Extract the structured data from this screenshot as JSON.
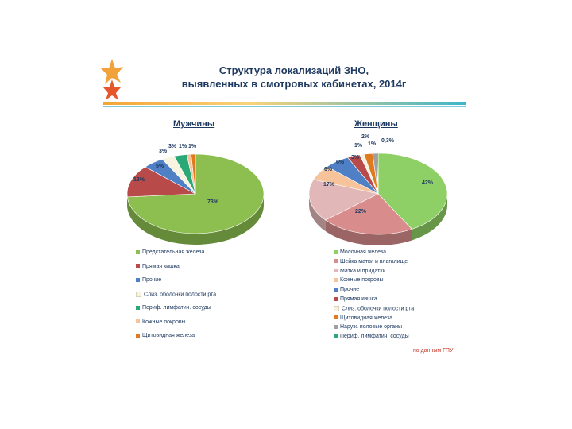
{
  "title": {
    "line1": "Структура локализаций ЗНО,",
    "line2": "выявленных в смотровых кабинетах, 2014г"
  },
  "note": "по данным ГПУ",
  "colors": {
    "green": "#8cbf4f",
    "red": "#b84a4a",
    "blue": "#4f7fc4",
    "cream": "#f7f3e0",
    "teal": "#2aa876",
    "peach": "#f6c39a",
    "orange": "#e07a1f",
    "lightgreen": "#8fd066",
    "rose": "#d98c8c",
    "pink": "#e2b7b7",
    "grey": "#a0a0a0"
  },
  "chart_data": [
    {
      "type": "pie",
      "title": "Мужчины",
      "slices": [
        {
          "label": "Предстательная железа",
          "value": 73,
          "value_label": "73%",
          "color": "#8cbf4f"
        },
        {
          "label": "Прямая кишка",
          "value": 13,
          "value_label": "13%",
          "color": "#b84a4a"
        },
        {
          "label": "Прочие",
          "value": 5,
          "value_label": "5%",
          "color": "#4f7fc4"
        },
        {
          "label": "Слиз. оболочки полости рта",
          "value": 3,
          "value_label": "3%",
          "color": "#f7f3e0"
        },
        {
          "label": "Периф. лимфатич. сосуды",
          "value": 3,
          "value_label": "3%",
          "color": "#2aa876"
        },
        {
          "label": "Кожные покровы",
          "value": 1,
          "value_label": "1%",
          "color": "#f6c39a"
        },
        {
          "label": "Щитовидная железа",
          "value": 1,
          "value_label": "1%",
          "color": "#e07a1f"
        }
      ]
    },
    {
      "type": "pie",
      "title": "Женщины",
      "slices": [
        {
          "label": "Молочная железа",
          "value": 42,
          "value_label": "42%",
          "color": "#8fd066"
        },
        {
          "label": "Шейка матки и влагалище",
          "value": 22,
          "value_label": "22%",
          "color": "#d98c8c"
        },
        {
          "label": "Матка и придатки",
          "value": 17,
          "value_label": "17%",
          "color": "#e2b7b7"
        },
        {
          "label": "Кожные покровы",
          "value": 6,
          "value_label": "6%",
          "color": "#f6c39a"
        },
        {
          "label": "Прочие",
          "value": 6,
          "value_label": "6%",
          "color": "#4f7fc4"
        },
        {
          "label": "Прямая кишка",
          "value": 3,
          "value_label": "3%",
          "color": "#b84a4a"
        },
        {
          "label": "Слиз. оболочки полости рта",
          "value": 1,
          "value_label": "1%",
          "color": "#f7f3e0"
        },
        {
          "label": "Щитовидная железа",
          "value": 2,
          "value_label": "2%",
          "color": "#e07a1f"
        },
        {
          "label": "Наруж. половые органы",
          "value": 1,
          "value_label": "1%",
          "color": "#a0a0a0"
        },
        {
          "label": "Периф. лимфатич. сосуды",
          "value": 0.3,
          "value_label": "0,3%",
          "color": "#2aa876"
        }
      ]
    }
  ]
}
